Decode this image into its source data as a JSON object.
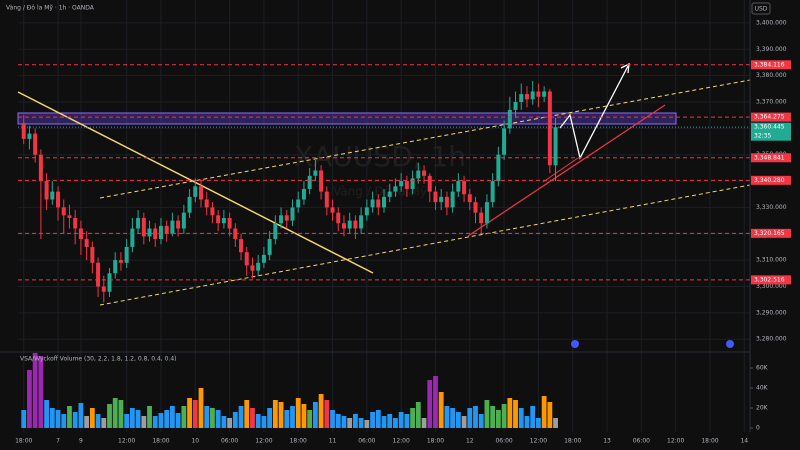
{
  "header": {
    "symbol_line": "Vàng / Đô la Mỹ · 1h · OANDA",
    "currency": "USD"
  },
  "watermark": {
    "symbol": "XAUUSD, 1h",
    "name": "Vàng / Đô la Mỹ"
  },
  "chart_data": [
    {
      "type": "candlestick",
      "up_color": "#22ab94",
      "down_color": "#f23645",
      "open": [
        3362,
        3356,
        3358,
        3350,
        3340,
        3333,
        3336,
        3330,
        3327,
        3326,
        3322,
        3318,
        3315,
        3309,
        3300,
        3298,
        3305,
        3310,
        3309,
        3315,
        3322,
        3326,
        3319,
        3322,
        3318,
        3323,
        3320,
        3325,
        3322,
        3328,
        3334,
        3338,
        3333,
        3330,
        3327,
        3324,
        3326,
        3322,
        3318,
        3313,
        3308,
        3306,
        3309,
        3312,
        3318,
        3324,
        3327,
        3325,
        3330,
        3333,
        3337,
        3342,
        3344,
        3336,
        3330,
        3328,
        3324,
        3322,
        3325,
        3322,
        3327,
        3330,
        3333,
        3330,
        3334,
        3336,
        3338,
        3340,
        3337,
        3341,
        3344,
        3342,
        3336,
        3332,
        3334,
        3330,
        3336,
        3340,
        3335,
        3332,
        3328,
        3324,
        3332,
        3340,
        3350,
        3360,
        3367,
        3370,
        3373,
        3371,
        3374,
        3372,
        3374,
        3346
      ],
      "high": [
        3365,
        3361,
        3360,
        3352,
        3343,
        3340,
        3338,
        3333,
        3331,
        3329,
        3325,
        3321,
        3317,
        3311,
        3304,
        3307,
        3313,
        3313,
        3318,
        3326,
        3329,
        3328,
        3325,
        3324,
        3326,
        3325,
        3328,
        3327,
        3331,
        3337,
        3341,
        3340,
        3336,
        3332,
        3329,
        3329,
        3328,
        3324,
        3320,
        3315,
        3311,
        3312,
        3315,
        3321,
        3327,
        3330,
        3329,
        3333,
        3336,
        3340,
        3345,
        3348,
        3346,
        3338,
        3333,
        3330,
        3327,
        3328,
        3327,
        3330,
        3333,
        3336,
        3335,
        3337,
        3339,
        3341,
        3343,
        3342,
        3344,
        3347,
        3346,
        3343,
        3338,
        3337,
        3336,
        3339,
        3343,
        3342,
        3337,
        3334,
        3330,
        3335,
        3343,
        3353,
        3363,
        3372,
        3374,
        3377,
        3376,
        3378,
        3377,
        3376,
        3375,
        3364
      ],
      "low": [
        3354,
        3352,
        3347,
        3318,
        3329,
        3331,
        3325,
        3320,
        3322,
        3316,
        3312,
        3310,
        3305,
        3296,
        3294,
        3296,
        3303,
        3306,
        3307,
        3313,
        3320,
        3316,
        3317,
        3315,
        3316,
        3317,
        3319,
        3319,
        3320,
        3326,
        3332,
        3330,
        3327,
        3324,
        3321,
        3322,
        3319,
        3315,
        3310,
        3304,
        3303,
        3304,
        3307,
        3310,
        3316,
        3322,
        3322,
        3323,
        3328,
        3331,
        3335,
        3340,
        3333,
        3327,
        3325,
        3321,
        3319,
        3320,
        3318,
        3320,
        3325,
        3328,
        3327,
        3328,
        3332,
        3334,
        3336,
        3334,
        3335,
        3339,
        3339,
        3332,
        3329,
        3329,
        3327,
        3328,
        3334,
        3332,
        3329,
        3324,
        3320,
        3322,
        3330,
        3338,
        3348,
        3358,
        3364,
        3367,
        3368,
        3369,
        3368,
        3370,
        3343,
        3340
      ],
      "close": [
        3356,
        3358,
        3350,
        3340,
        3333,
        3336,
        3330,
        3327,
        3326,
        3322,
        3318,
        3315,
        3309,
        3300,
        3298,
        3305,
        3310,
        3309,
        3315,
        3322,
        3326,
        3319,
        3322,
        3318,
        3323,
        3320,
        3325,
        3322,
        3328,
        3334,
        3338,
        3333,
        3330,
        3327,
        3324,
        3326,
        3322,
        3318,
        3313,
        3308,
        3306,
        3309,
        3312,
        3318,
        3324,
        3327,
        3325,
        3330,
        3333,
        3337,
        3342,
        3344,
        3336,
        3330,
        3328,
        3324,
        3322,
        3325,
        3322,
        3327,
        3330,
        3333,
        3330,
        3334,
        3336,
        3338,
        3340,
        3337,
        3341,
        3344,
        3342,
        3336,
        3332,
        3334,
        3330,
        3336,
        3340,
        3335,
        3332,
        3328,
        3324,
        3332,
        3340,
        3350,
        3360,
        3367,
        3370,
        3373,
        3371,
        3374,
        3372,
        3374,
        3346,
        3360.445
      ],
      "xlim": [
        -1,
        127
      ],
      "xticks": [
        {
          "value": 0,
          "label": "18:00"
        },
        {
          "value": 6,
          "label": "7"
        },
        {
          "value": 10,
          "label": "9"
        },
        {
          "value": 18,
          "label": "12:00"
        },
        {
          "value": 24,
          "label": "18:00"
        },
        {
          "value": 30,
          "label": "10"
        },
        {
          "value": 36,
          "label": "06:00"
        },
        {
          "value": 42,
          "label": "12:00"
        },
        {
          "value": 48,
          "label": "18:00"
        },
        {
          "value": 54,
          "label": "11"
        },
        {
          "value": 60,
          "label": "06:00"
        },
        {
          "value": 66,
          "label": "12:00"
        },
        {
          "value": 72,
          "label": "18:00"
        },
        {
          "value": 78,
          "label": "12"
        },
        {
          "value": 84,
          "label": "06:00"
        },
        {
          "value": 90,
          "label": "12:00"
        },
        {
          "value": 96,
          "label": "18:00"
        },
        {
          "value": 102,
          "label": "13"
        },
        {
          "value": 108,
          "label": "06:00"
        },
        {
          "value": 114,
          "label": "12:00"
        },
        {
          "value": 120,
          "label": "18:00"
        },
        {
          "value": 126,
          "label": "14"
        }
      ],
      "ylim": [
        3275.9,
        3408.7
      ],
      "yticks": [
        {
          "value": 3400,
          "label": "3,400.000"
        },
        {
          "value": 3390,
          "label": "3,390.000"
        },
        {
          "value": 3380,
          "label": "3,380.000"
        },
        {
          "value": 3370,
          "label": "3,370.000"
        },
        {
          "value": 3360,
          "label": "3,360.000"
        },
        {
          "value": 3350,
          "label": "3,350.000"
        },
        {
          "value": 3340,
          "label": "3,340.000"
        },
        {
          "value": 3330,
          "label": "3,330.000"
        },
        {
          "value": 3320,
          "label": "3,320.000"
        },
        {
          "value": 3310,
          "label": "3,310.000"
        },
        {
          "value": 3300,
          "label": "3,300.000"
        },
        {
          "value": 3290,
          "label": "3,290.000"
        },
        {
          "value": 3280,
          "label": "3,280.000"
        }
      ],
      "level_color": "#f23645",
      "levels": [
        {
          "value": 3384.116,
          "label": "3,384.116"
        },
        {
          "value": 3364.275,
          "label": "3,364.275"
        },
        {
          "value": 3348.841,
          "label": "3,348.841"
        },
        {
          "value": 3340.28,
          "label": "3,340.280"
        },
        {
          "value": 3320.165,
          "label": "3,320.165"
        },
        {
          "value": 3302.516,
          "label": "3,302.516"
        }
      ],
      "current": {
        "value": 3360.445,
        "label": "3,360.445",
        "countdown": "32:35",
        "color": "#22ab94"
      }
    },
    {
      "type": "bar",
      "title": "VSA/Wyckoff Volume (30, 2.2, 1.8, 1.2, 0.8, 0.4, 0.4)",
      "values": [
        18000,
        58000,
        75000,
        72000,
        28000,
        20000,
        18000,
        14000,
        22000,
        16000,
        25000,
        12000,
        20000,
        14000,
        10000,
        24000,
        30000,
        28000,
        14000,
        20000,
        18000,
        12000,
        22000,
        12000,
        15000,
        18000,
        22000,
        15000,
        22000,
        30000,
        28000,
        40000,
        22000,
        20000,
        18000,
        12000,
        10000,
        16000,
        22000,
        28000,
        20000,
        14000,
        12000,
        20000,
        28000,
        26000,
        18000,
        22000,
        30000,
        24000,
        18000,
        26000,
        34000,
        28000,
        18000,
        14000,
        12000,
        10000,
        14000,
        10000,
        8000,
        16000,
        18000,
        12000,
        14000,
        10000,
        16000,
        14000,
        20000,
        26000,
        10000,
        48000,
        52000,
        36000,
        22000,
        20000,
        16000,
        12000,
        20000,
        22000,
        14000,
        28000,
        22000,
        18000,
        24000,
        30000,
        28000,
        20000,
        12000,
        22000,
        10000,
        32000,
        26000,
        10000
      ],
      "colors": [
        "#2196f3",
        "#9c27b0",
        "#9c27b0",
        "#9c27b0",
        "#2196f3",
        "#2196f3",
        "#2196f3",
        "#2196f3",
        "#4caf50",
        "#2196f3",
        "#2196f3",
        "#9e9e9e",
        "#ff9800",
        "#2196f3",
        "#9e9e9e",
        "#4caf50",
        "#4caf50",
        "#4caf50",
        "#2196f3",
        "#2196f3",
        "#2196f3",
        "#9e9e9e",
        "#4caf50",
        "#2196f3",
        "#2196f3",
        "#2196f3",
        "#2196f3",
        "#2196f3",
        "#4caf50",
        "#ff9800",
        "#f23645",
        "#ff9800",
        "#2196f3",
        "#4caf50",
        "#2196f3",
        "#2196f3",
        "#9e9e9e",
        "#2196f3",
        "#2196f3",
        "#ff9800",
        "#f23645",
        "#2196f3",
        "#2196f3",
        "#2196f3",
        "#ff9800",
        "#ff9800",
        "#2196f3",
        "#2196f3",
        "#ff9800",
        "#ff9800",
        "#4caf50",
        "#2196f3",
        "#ff9800",
        "#f23645",
        "#2196f3",
        "#2196f3",
        "#2196f3",
        "#9e9e9e",
        "#2196f3",
        "#2196f3",
        "#9e9e9e",
        "#2196f3",
        "#2196f3",
        "#2196f3",
        "#2196f3",
        "#2196f3",
        "#2196f3",
        "#2196f3",
        "#4caf50",
        "#4caf50",
        "#9e9e9e",
        "#9c27b0",
        "#9c27b0",
        "#ff9800",
        "#2196f3",
        "#2196f3",
        "#2196f3",
        "#9e9e9e",
        "#2196f3",
        "#2196f3",
        "#2196f3",
        "#4caf50",
        "#4caf50",
        "#4caf50",
        "#4caf50",
        "#ff9800",
        "#ff9800",
        "#2196f3",
        "#2196f3",
        "#2196f3",
        "#2196f3",
        "#ff9800",
        "#ff9800",
        "#9e9e9e"
      ],
      "ylim": [
        0,
        73000
      ],
      "yticks": [
        {
          "value": 0,
          "label": "0"
        },
        {
          "value": 20000,
          "label": "20K"
        },
        {
          "value": 40000,
          "label": "40K"
        },
        {
          "value": 60000,
          "label": "60K"
        }
      ]
    }
  ]
}
